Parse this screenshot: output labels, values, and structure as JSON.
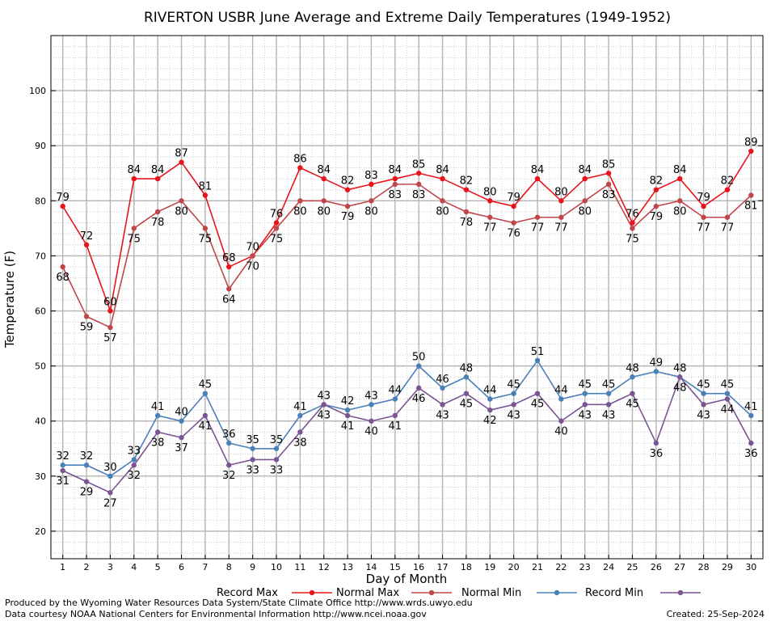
{
  "chart_data": {
    "type": "line",
    "title": "RIVERTON USBR June Average and Extreme Daily Temperatures (1949-1952)",
    "xlabel": "Day of Month",
    "ylabel": "Temperature (F)",
    "ylim": [
      15,
      110
    ],
    "xlim": [
      0.5,
      30.5
    ],
    "y_ticks": [
      20,
      30,
      40,
      50,
      60,
      70,
      80,
      90,
      100
    ],
    "x": [
      1,
      2,
      3,
      4,
      5,
      6,
      7,
      8,
      9,
      10,
      11,
      12,
      13,
      14,
      15,
      16,
      17,
      18,
      19,
      20,
      21,
      22,
      23,
      24,
      25,
      26,
      27,
      28,
      29,
      30
    ],
    "grid": true,
    "legend_position": "bottom",
    "series": [
      {
        "name": "Record Max",
        "color": "#e8141c",
        "values": [
          79,
          72,
          60,
          84,
          84,
          87,
          81,
          68,
          70,
          76,
          86,
          84,
          82,
          83,
          84,
          85,
          84,
          82,
          80,
          79,
          84,
          80,
          84,
          85,
          76,
          82,
          84,
          79,
          82,
          89
        ]
      },
      {
        "name": "Normal Max",
        "color": "#c0464b",
        "values": [
          68,
          59,
          57,
          75,
          78,
          80,
          75,
          64,
          70,
          75,
          80,
          80,
          79,
          80,
          83,
          83,
          80,
          78,
          77,
          76,
          77,
          77,
          80,
          83,
          75,
          79,
          80,
          77,
          77,
          81
        ]
      },
      {
        "name": "Normal Min",
        "color": "#4a80b8",
        "values": [
          32,
          32,
          30,
          33,
          41,
          40,
          45,
          36,
          35,
          35,
          41,
          43,
          42,
          43,
          44,
          50,
          46,
          48,
          44,
          45,
          51,
          44,
          45,
          45,
          48,
          49,
          48,
          45,
          45,
          41
        ]
      },
      {
        "name": "Record Min",
        "color": "#7b5494",
        "values": [
          31,
          29,
          27,
          32,
          38,
          37,
          41,
          32,
          33,
          33,
          38,
          43,
          41,
          40,
          41,
          46,
          43,
          45,
          42,
          43,
          45,
          40,
          43,
          43,
          45,
          36,
          48,
          43,
          44,
          36
        ]
      }
    ]
  },
  "footer": {
    "line1": "Produced by the Wyoming Water Resources Data System/State Climate Office http://www.wrds.uwyo.edu",
    "line2": "Data courtesy NOAA National Centers for Environmental Information http://www.ncei.noaa.gov",
    "created": "Created:  25-Sep-2024"
  }
}
